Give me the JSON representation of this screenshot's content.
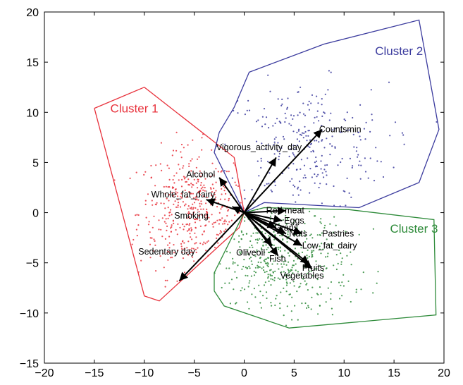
{
  "chart_data": {
    "type": "scatter",
    "title": "",
    "xlabel": "",
    "ylabel": "",
    "xlim": [
      -20,
      20
    ],
    "ylim": [
      -15,
      20
    ],
    "xticks": [
      -20,
      -15,
      -10,
      -5,
      0,
      5,
      10,
      15,
      20
    ],
    "yticks": [
      -15,
      -10,
      -5,
      0,
      5,
      10,
      15,
      20
    ],
    "grid": false,
    "colors": {
      "cluster1": "#e8323c",
      "cluster2": "#3b3b9e",
      "cluster3": "#2e8b3a",
      "arrow": "#000000"
    },
    "clusters": [
      {
        "name": "Cluster 1",
        "color": "#e8323c",
        "label_pos": [
          -11,
          10
        ],
        "hull": [
          [
            -15,
            10.4
          ],
          [
            -10,
            12.5
          ],
          [
            -1,
            5.5
          ],
          [
            0,
            0
          ],
          [
            -0.5,
            -1.5
          ],
          [
            -2.5,
            -3.3
          ],
          [
            -8.5,
            -8.8
          ],
          [
            -10,
            -8.3
          ],
          [
            -15,
            10.4
          ]
        ],
        "center": [
          -5,
          0
        ],
        "spread": [
          2.8,
          3.2
        ],
        "count": 420
      },
      {
        "name": "Cluster 2",
        "color": "#3b3b9e",
        "label_pos": [
          15.5,
          15.7
        ],
        "hull": [
          [
            -2.5,
            8
          ],
          [
            -1,
            10.5
          ],
          [
            0.5,
            14
          ],
          [
            8,
            16.8
          ],
          [
            17.5,
            19.2
          ],
          [
            19.5,
            8.3
          ],
          [
            17.5,
            3
          ],
          [
            11.5,
            0.5
          ],
          [
            2,
            1
          ],
          [
            0,
            0
          ],
          [
            -3,
            6
          ],
          [
            -2.5,
            8
          ]
        ],
        "center": [
          6,
          6.5
        ],
        "spread": [
          4.2,
          3.2
        ],
        "count": 280
      },
      {
        "name": "Cluster 3",
        "color": "#2e8b3a",
        "label_pos": [
          17,
          -2
        ],
        "hull": [
          [
            -3,
            -7.8
          ],
          [
            -2,
            -9.3
          ],
          [
            4.5,
            -11.5
          ],
          [
            19.2,
            -10.2
          ],
          [
            19,
            -0.7
          ],
          [
            10.5,
            0.3
          ],
          [
            2,
            0.5
          ],
          [
            0,
            0
          ],
          [
            -3,
            -6
          ],
          [
            -3,
            -7.8
          ]
        ],
        "center": [
          3.5,
          -5
        ],
        "spread": [
          3.6,
          2.8
        ],
        "count": 420
      }
    ],
    "arrows": [
      {
        "label": "Countsmin",
        "x": 7.8,
        "y": 8.3,
        "label_pos": [
          7.5,
          8.3
        ]
      },
      {
        "label": "Vigorous_activity_day",
        "x": 3.2,
        "y": 5.5,
        "label_pos": [
          -2.8,
          6.5
        ]
      },
      {
        "label": "Alcohol",
        "x": -2.5,
        "y": 3.5,
        "label_pos": [
          -5.8,
          3.8
        ]
      },
      {
        "label": "Whole_fat_dairy",
        "x": -3.8,
        "y": 1.3,
        "label_pos": [
          -9.3,
          1.8
        ]
      },
      {
        "label": "Smoking",
        "x": -1.2,
        "y": 0.6,
        "label_pos": [
          -7.0,
          -0.3
        ]
      },
      {
        "label": "Sedentary day",
        "x": -6.5,
        "y": -6.8,
        "label_pos": [
          -10.6,
          -3.9
        ]
      },
      {
        "label": "Red meat",
        "x": 4.2,
        "y": 0.2,
        "label_pos": [
          2.2,
          0.2
        ]
      },
      {
        "label": "Eggs",
        "x": 3.8,
        "y": -0.8,
        "label_pos": [
          4,
          -0.8
        ]
      },
      {
        "label": "Grans",
        "x": 3.2,
        "y": -1.5,
        "label_pos": [
          3,
          -1.5
        ]
      },
      {
        "label": "Nuts",
        "x": 4.2,
        "y": -2.1,
        "label_pos": [
          4.5,
          -2.1
        ]
      },
      {
        "label": "Pastries",
        "x": 5.8,
        "y": -2.1,
        "label_pos": [
          7.8,
          -2.1
        ]
      },
      {
        "label": "Low_fat_dairy",
        "x": 5.8,
        "y": -3.3,
        "label_pos": [
          5.8,
          -3.3
        ]
      },
      {
        "label": "Oliveoil",
        "x": 2.8,
        "y": -3.3,
        "label_pos": [
          -0.8,
          -4
        ]
      },
      {
        "label": "Fish",
        "x": 3.4,
        "y": -4.3,
        "label_pos": [
          2.5,
          -4.6
        ]
      },
      {
        "label": "Fruits",
        "x": 6.5,
        "y": -5.1,
        "label_pos": [
          5.8,
          -5.5
        ]
      },
      {
        "label": "Vegetables",
        "x": 6.8,
        "y": -5.6,
        "label_pos": [
          3.6,
          -6.3
        ]
      }
    ]
  }
}
